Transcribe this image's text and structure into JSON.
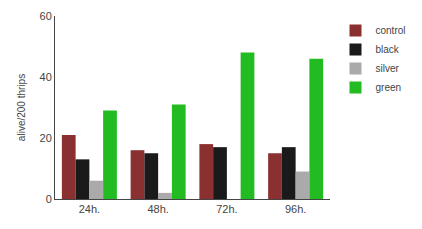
{
  "chart_data": {
    "type": "bar",
    "categories": [
      "24h.",
      "48h.",
      "72h.",
      "96h."
    ],
    "series": [
      {
        "name": "control",
        "color": "#8B3030",
        "values": [
          21,
          16,
          18,
          15
        ]
      },
      {
        "name": "black",
        "color": "#1a1a1a",
        "values": [
          13,
          15,
          17,
          17
        ]
      },
      {
        "name": "silver",
        "color": "#aaaaaa",
        "values": [
          6,
          2,
          0,
          9
        ]
      },
      {
        "name": "green",
        "color": "#22bb22",
        "values": [
          29,
          31,
          48,
          46
        ]
      }
    ],
    "ylabel": "alive/200 thrips",
    "ylim": [
      0,
      60
    ],
    "yticks": [
      0,
      20,
      40,
      60
    ],
    "grid": false,
    "legend": "upper right"
  }
}
